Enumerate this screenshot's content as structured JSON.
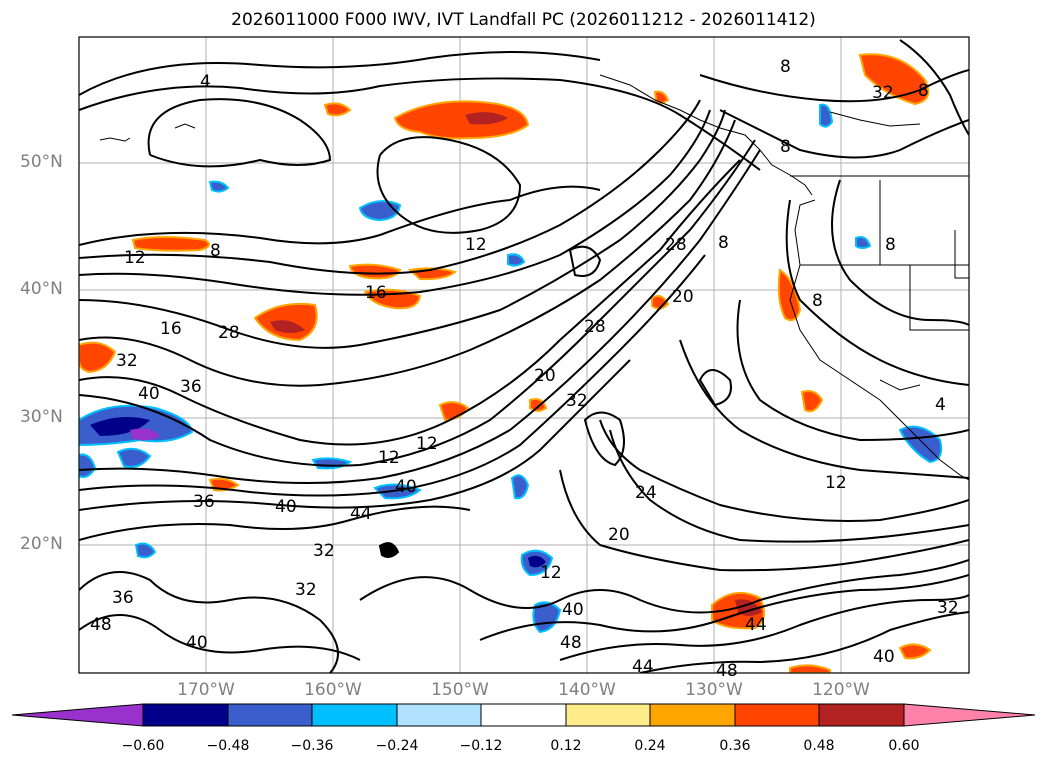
{
  "title": "2026011000 F000 IWV, IVT Landfall PC (2026011212 - 2026011412)",
  "map": {
    "lat_labels": [
      "50°N",
      "40°N",
      "30°N",
      "20°N"
    ],
    "lon_labels": [
      "170°W",
      "160°W",
      "150°W",
      "140°W",
      "130°W",
      "120°W"
    ],
    "grid": true,
    "contour_labels": [
      "4",
      "8",
      "12",
      "16",
      "20",
      "24",
      "28",
      "32",
      "36",
      "40",
      "44",
      "48"
    ]
  },
  "colorbar": {
    "ticks": [
      "−0.60",
      "−0.48",
      "−0.36",
      "−0.24",
      "−0.12",
      "0.12",
      "0.24",
      "0.36",
      "0.48",
      "0.60"
    ],
    "colors": [
      "#9932cc",
      "#00008b",
      "#3a5fcd",
      "#00bfff",
      "#b0e2ff",
      "#ffffff",
      "#ffec8b",
      "#ffa500",
      "#ff4500",
      "#b22222",
      "#ff82ab"
    ],
    "extend": "both"
  }
}
